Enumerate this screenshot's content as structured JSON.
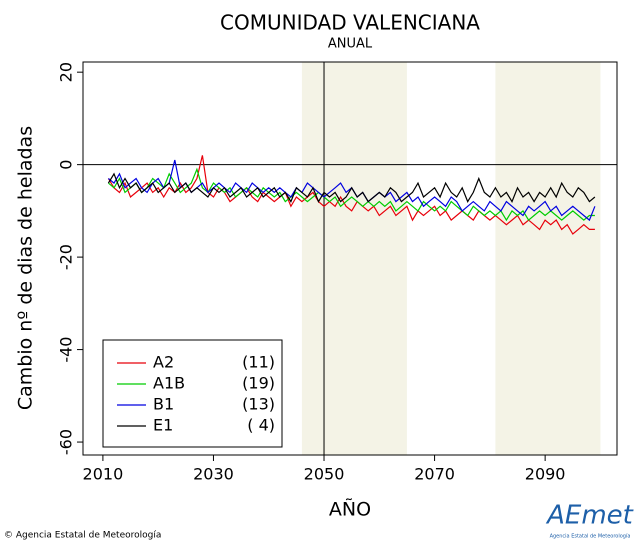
{
  "chart_data": {
    "type": "line",
    "title": "COMUNIDAD VALENCIANA",
    "subtitle": "ANUAL",
    "xlabel": "AÑO",
    "ylabel": "Cambio nº de dias de heladas",
    "xlim": [
      2006.4,
      2103
    ],
    "ylim": [
      -62.8,
      22.2
    ],
    "xticks": [
      2010,
      2030,
      2050,
      2070,
      2090
    ],
    "yticks": [
      -60,
      -40,
      -20,
      0,
      20
    ],
    "shaded_periods": [
      [
        2046,
        2065
      ],
      [
        2081,
        2100
      ]
    ],
    "shade_color": "#f4f3e6",
    "vline": 2050,
    "hline": 0,
    "legend_position": "lower left",
    "x": [
      2011,
      2012,
      2013,
      2014,
      2015,
      2016,
      2017,
      2018,
      2019,
      2020,
      2021,
      2022,
      2023,
      2024,
      2025,
      2026,
      2027,
      2028,
      2029,
      2030,
      2031,
      2032,
      2033,
      2034,
      2035,
      2036,
      2037,
      2038,
      2039,
      2040,
      2041,
      2042,
      2043,
      2044,
      2045,
      2046,
      2047,
      2048,
      2049,
      2050,
      2051,
      2052,
      2053,
      2054,
      2055,
      2056,
      2057,
      2058,
      2059,
      2060,
      2061,
      2062,
      2063,
      2064,
      2065,
      2066,
      2067,
      2068,
      2069,
      2070,
      2071,
      2072,
      2073,
      2074,
      2075,
      2076,
      2077,
      2078,
      2079,
      2080,
      2081,
      2082,
      2083,
      2084,
      2085,
      2086,
      2087,
      2088,
      2089,
      2090,
      2091,
      2092,
      2093,
      2094,
      2095,
      2096,
      2097,
      2098,
      2099
    ],
    "series": [
      {
        "name": "A2",
        "members": "(11)",
        "color": "#e8000b",
        "values": [
          -3,
          -5,
          -6,
          -4,
          -7,
          -6,
          -5,
          -4,
          -6,
          -5,
          -7,
          -5,
          -6,
          -4,
          -6,
          -5,
          -3,
          2,
          -6,
          -7,
          -5,
          -6,
          -8,
          -7,
          -6,
          -5,
          -7,
          -8,
          -6,
          -7,
          -8,
          -7,
          -6,
          -9,
          -7,
          -8,
          -7,
          -6,
          -8,
          -9,
          -8,
          -9,
          -7,
          -9,
          -10,
          -8,
          -9,
          -10,
          -9,
          -11,
          -10,
          -9,
          -11,
          -10,
          -9,
          -12,
          -10,
          -11,
          -10,
          -9,
          -11,
          -10,
          -12,
          -11,
          -10,
          -11,
          -12,
          -10,
          -11,
          -12,
          -11,
          -12,
          -13,
          -12,
          -11,
          -13,
          -12,
          -13,
          -14,
          -12,
          -13,
          -12,
          -14,
          -13,
          -15,
          -14,
          -13,
          -14,
          -14
        ]
      },
      {
        "name": "A1B",
        "members": "(19)",
        "color": "#00cc00",
        "values": [
          -4,
          -5,
          -3,
          -6,
          -5,
          -4,
          -6,
          -5,
          -3,
          -4,
          -5,
          -2,
          -4,
          -6,
          -5,
          -4,
          -1,
          -5,
          -6,
          -4,
          -5,
          -6,
          -5,
          -7,
          -6,
          -5,
          -6,
          -7,
          -5,
          -6,
          -7,
          -6,
          -8,
          -7,
          -6,
          -7,
          -8,
          -7,
          -6,
          -7,
          -8,
          -7,
          -9,
          -8,
          -7,
          -8,
          -9,
          -8,
          -9,
          -8,
          -9,
          -8,
          -10,
          -9,
          -8,
          -9,
          -10,
          -8,
          -9,
          -10,
          -9,
          -10,
          -8,
          -9,
          -10,
          -11,
          -9,
          -10,
          -11,
          -10,
          -11,
          -10,
          -12,
          -10,
          -11,
          -10,
          -12,
          -11,
          -10,
          -11,
          -10,
          -11,
          -12,
          -11,
          -10,
          -11,
          -12,
          -11,
          -11
        ]
      },
      {
        "name": "B1",
        "members": "(13)",
        "color": "#0000e0",
        "values": [
          -3,
          -4,
          -2,
          -5,
          -4,
          -3,
          -5,
          -6,
          -4,
          -3,
          -5,
          -4,
          1,
          -5,
          -4,
          -6,
          -5,
          -4,
          -6,
          -5,
          -4,
          -5,
          -6,
          -4,
          -5,
          -6,
          -4,
          -5,
          -6,
          -5,
          -6,
          -5,
          -6,
          -7,
          -5,
          -6,
          -4,
          -5,
          -6,
          -7,
          -6,
          -5,
          -4,
          -6,
          -5,
          -7,
          -6,
          -8,
          -7,
          -6,
          -7,
          -6,
          -8,
          -7,
          -6,
          -8,
          -7,
          -9,
          -8,
          -7,
          -8,
          -9,
          -7,
          -8,
          -10,
          -9,
          -8,
          -9,
          -10,
          -8,
          -9,
          -10,
          -8,
          -9,
          -10,
          -11,
          -9,
          -10,
          -9,
          -8,
          -10,
          -9,
          -11,
          -10,
          -9,
          -10,
          -11,
          -12,
          -9
        ]
      },
      {
        "name": "E1",
        "members": "( 4)",
        "color": "#000000",
        "values": [
          -4,
          -2,
          -5,
          -3,
          -5,
          -4,
          -6,
          -5,
          -4,
          -6,
          -5,
          -4,
          -6,
          -5,
          -4,
          -6,
          -5,
          -6,
          -7,
          -5,
          -6,
          -5,
          -7,
          -6,
          -5,
          -7,
          -6,
          -5,
          -7,
          -6,
          -5,
          -7,
          -6,
          -8,
          -5,
          -6,
          -7,
          -5,
          -8,
          -6,
          -7,
          -6,
          -8,
          -7,
          -5,
          -7,
          -6,
          -8,
          -7,
          -6,
          -7,
          -5,
          -6,
          -8,
          -7,
          -6,
          -4,
          -7,
          -6,
          -5,
          -7,
          -4,
          -6,
          -7,
          -5,
          -8,
          -6,
          -3,
          -6,
          -7,
          -5,
          -7,
          -6,
          -8,
          -5,
          -7,
          -6,
          -8,
          -6,
          -7,
          -5,
          -7,
          -4,
          -6,
          -7,
          -5,
          -6,
          -8,
          -7
        ]
      }
    ]
  },
  "footer": {
    "copyright": "© Agencia Estatal de Meteorología",
    "logo": "AEmet",
    "logo_caption": "Agencia Estatal de Meteorología"
  }
}
